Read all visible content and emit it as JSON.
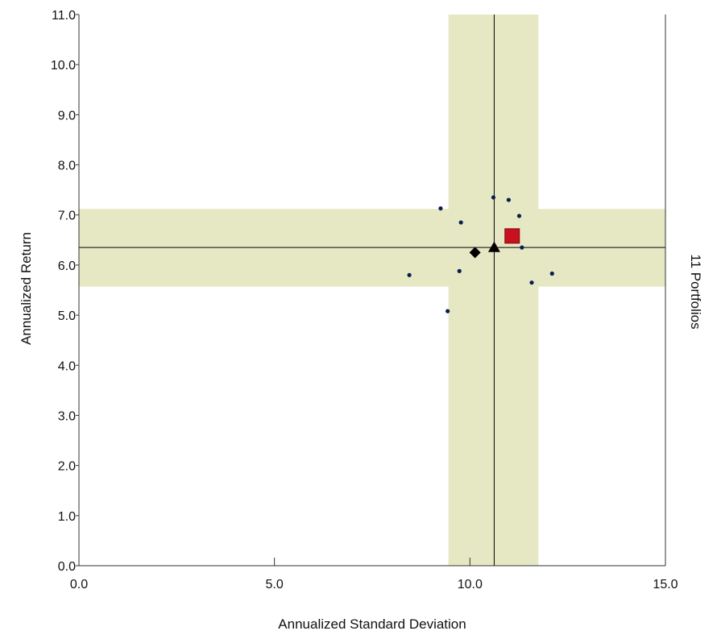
{
  "chart_data": {
    "type": "scatter",
    "xlabel": "Annualized Standard Deviation",
    "ylabel": "Annualized Return",
    "right_label": "11 Portfolios",
    "xlim": [
      0,
      15
    ],
    "ylim": [
      0,
      11
    ],
    "x_ticks": [
      {
        "value": 0,
        "label": "0.0"
      },
      {
        "value": 5,
        "label": "5.0"
      },
      {
        "value": 10,
        "label": "10.0"
      },
      {
        "value": 15,
        "label": "15.0"
      }
    ],
    "y_ticks": [
      {
        "value": 0,
        "label": "0.0"
      },
      {
        "value": 1,
        "label": "1.0"
      },
      {
        "value": 2,
        "label": "2.0"
      },
      {
        "value": 3,
        "label": "3.0"
      },
      {
        "value": 4,
        "label": "4.0"
      },
      {
        "value": 5,
        "label": "5.0"
      },
      {
        "value": 6,
        "label": "6.0"
      },
      {
        "value": 7,
        "label": "7.0"
      },
      {
        "value": 8,
        "label": "8.0"
      },
      {
        "value": 9,
        "label": "9.0"
      },
      {
        "value": 10,
        "label": "10.0"
      },
      {
        "value": 11,
        "label": "11.0"
      }
    ],
    "grid": false,
    "band_color": "#e6e8c4",
    "bands": {
      "x_range": [
        9.45,
        11.75
      ],
      "y_range": [
        5.57,
        7.12
      ]
    },
    "reference_lines": {
      "x": 10.62,
      "y": 6.35
    },
    "portfolios": {
      "color": "#0b1f4f",
      "points": [
        {
          "x": 8.45,
          "y": 5.8
        },
        {
          "x": 9.25,
          "y": 7.13
        },
        {
          "x": 9.43,
          "y": 5.08
        },
        {
          "x": 9.73,
          "y": 5.88
        },
        {
          "x": 9.77,
          "y": 6.85
        },
        {
          "x": 10.6,
          "y": 7.35
        },
        {
          "x": 10.99,
          "y": 7.3
        },
        {
          "x": 11.26,
          "y": 6.98
        },
        {
          "x": 11.33,
          "y": 6.35
        },
        {
          "x": 11.58,
          "y": 5.65
        },
        {
          "x": 12.1,
          "y": 5.83
        }
      ]
    },
    "special_markers": [
      {
        "shape": "diamond",
        "x": 10.13,
        "y": 6.25,
        "color": "#000000"
      },
      {
        "shape": "triangle",
        "x": 10.62,
        "y": 6.35,
        "color": "#000000"
      },
      {
        "shape": "square",
        "x": 11.08,
        "y": 6.58,
        "color": "#c8101e"
      }
    ]
  }
}
